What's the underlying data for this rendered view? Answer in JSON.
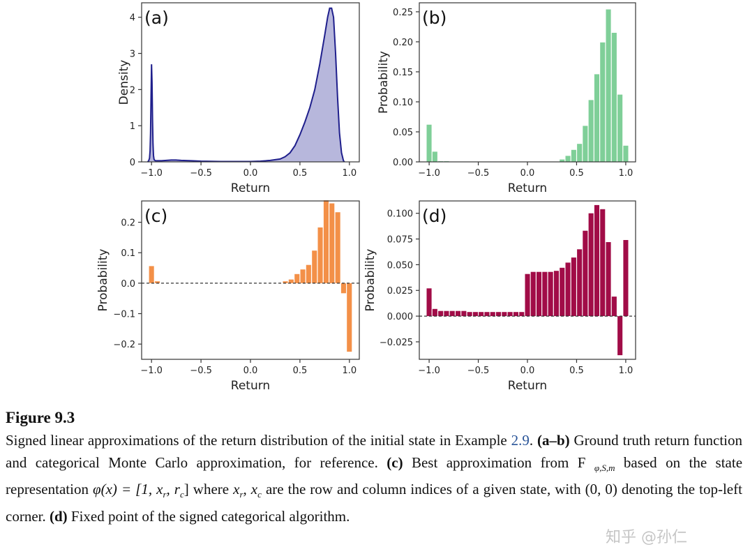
{
  "figure": {
    "number_label": "Figure 9.3",
    "caption_parts": {
      "p1": "Signed linear approximations of the return distribution of the initial state in Example ",
      "ref": "2.9",
      "p2": ". ",
      "ab": "(a–b)",
      "p3": " Ground truth return function and categorical Monte Carlo approximation, for reference. ",
      "c": "(c)",
      "p4": " Best approximation from F ",
      "sub": "φ,S,m",
      "p5": " based on the state representation ",
      "phi": "φ(x) = [1, x",
      "p6": " where ",
      "xs": "x",
      "p7": " are the row and column indices of a given state, with (0, 0) denoting the top-left corner. ",
      "d": "(d)",
      "p8": " Fixed point of the signed categorical algorithm."
    },
    "watermark": "知乎 @孙仁"
  },
  "chart_data": [
    {
      "type": "area",
      "panel_label": "(a)",
      "xlabel": "Return",
      "ylabel": "Density",
      "xlim": [
        -1.1,
        1.1
      ],
      "ylim": [
        0,
        4.4
      ],
      "xticks": [
        "−1.0",
        "−0.5",
        "0.0",
        "0.5",
        "1.0"
      ],
      "yticks": [
        "0",
        "1",
        "2",
        "3",
        "4"
      ],
      "color": "#1f1f8c",
      "fill": "#b7b7dc",
      "x": [
        -1.04,
        -1.03,
        -1.02,
        -1.015,
        -1.01,
        -1.005,
        -1.0,
        -0.995,
        -0.99,
        -0.985,
        -0.98,
        -0.975,
        -0.97,
        -0.96,
        -0.95,
        -0.9,
        -0.85,
        -0.8,
        -0.75,
        -0.7,
        -0.6,
        -0.5,
        -0.4,
        -0.3,
        -0.2,
        -0.1,
        0.0,
        0.1,
        0.2,
        0.3,
        0.35,
        0.4,
        0.45,
        0.5,
        0.55,
        0.6,
        0.65,
        0.7,
        0.75,
        0.78,
        0.8,
        0.82,
        0.84,
        0.86,
        0.88,
        0.9,
        0.92,
        0.94,
        0.95
      ],
      "y": [
        0,
        0.02,
        0.1,
        0.3,
        0.8,
        1.8,
        2.7,
        2.2,
        1.2,
        0.5,
        0.18,
        0.08,
        0.05,
        0.03,
        0.03,
        0.03,
        0.04,
        0.05,
        0.05,
        0.04,
        0.03,
        0.02,
        0.015,
        0.01,
        0.01,
        0.01,
        0.01,
        0.02,
        0.04,
        0.08,
        0.14,
        0.25,
        0.45,
        0.75,
        1.1,
        1.5,
        2.0,
        2.7,
        3.5,
        4.0,
        4.25,
        4.25,
        4.0,
        3.0,
        1.8,
        0.8,
        0.25,
        0.03,
        0.0
      ]
    },
    {
      "type": "bar",
      "panel_label": "(b)",
      "xlabel": "Return",
      "ylabel": "Probability",
      "xlim": [
        -1.1,
        1.1
      ],
      "ylim": [
        0,
        0.265
      ],
      "xticks": [
        "−1.0",
        "−0.5",
        "0.0",
        "0.5",
        "1.0"
      ],
      "yticks": [
        "0.00",
        "0.05",
        "0.10",
        "0.15",
        "0.20",
        "0.25"
      ],
      "color": "#7fcf98",
      "bin_width": 0.0588,
      "x": [
        -1.0,
        -0.9412,
        -0.8824,
        -0.8235,
        -0.7647,
        -0.7059,
        -0.6471,
        -0.5882,
        -0.5294,
        -0.4706,
        -0.4118,
        -0.3529,
        -0.2941,
        -0.2353,
        -0.1765,
        -0.1176,
        -0.0588,
        0.0,
        0.0588,
        0.1176,
        0.1765,
        0.2353,
        0.2941,
        0.3529,
        0.4118,
        0.4706,
        0.5294,
        0.5882,
        0.6471,
        0.7059,
        0.7647,
        0.8235,
        0.8824,
        0.9412,
        1.0
      ],
      "values": [
        0.062,
        0.017,
        0.001,
        0.001,
        0.0,
        0.0,
        0.0,
        0.0,
        0.0,
        0.0,
        0.0,
        0.0,
        0.0,
        0.0,
        0.0,
        0.0,
        0.0,
        0.0,
        0.0,
        0.0,
        0.0,
        0.0,
        0.0,
        0.004,
        0.01,
        0.02,
        0.03,
        0.06,
        0.103,
        0.146,
        0.199,
        0.254,
        0.215,
        0.112,
        0.027
      ]
    },
    {
      "type": "bar",
      "panel_label": "(c)",
      "xlabel": "Return",
      "ylabel": "Probability",
      "xlim": [
        -1.1,
        1.1
      ],
      "ylim": [
        -0.25,
        0.27
      ],
      "xticks": [
        "−1.0",
        "−0.5",
        "0.0",
        "0.5",
        "1.0"
      ],
      "yticks": [
        "−0.2",
        "−0.1",
        "0.0",
        "0.1",
        "0.2"
      ],
      "color": "#f39048",
      "bin_width": 0.0588,
      "x": [
        -1.0,
        -0.9412,
        0.3529,
        0.4118,
        0.4706,
        0.5294,
        0.5882,
        0.6471,
        0.7059,
        0.7647,
        0.8235,
        0.8824,
        0.9412,
        1.0
      ],
      "values": [
        0.056,
        0.006,
        0.006,
        0.012,
        0.03,
        0.045,
        0.06,
        0.107,
        0.183,
        0.272,
        0.262,
        0.233,
        -0.033,
        -0.225
      ]
    },
    {
      "type": "bar",
      "panel_label": "(d)",
      "xlabel": "Return",
      "ylabel": "Probability",
      "xlim": [
        -1.1,
        1.1
      ],
      "ylim": [
        -0.042,
        0.112
      ],
      "xticks": [
        "−1.0",
        "−0.5",
        "0.0",
        "0.5",
        "1.0"
      ],
      "yticks": [
        "−0.025",
        "0.000",
        "0.025",
        "0.050",
        "0.075",
        "0.100"
      ],
      "color": "#a10c47",
      "bin_width": 0.0588,
      "x": [
        -1.0,
        -0.9412,
        -0.8824,
        -0.8235,
        -0.7647,
        -0.7059,
        -0.6471,
        -0.5882,
        -0.5294,
        -0.4706,
        -0.4118,
        -0.3529,
        -0.2941,
        -0.2353,
        -0.1765,
        -0.1176,
        -0.0588,
        0.0,
        0.0588,
        0.1176,
        0.1765,
        0.2353,
        0.2941,
        0.3529,
        0.4118,
        0.4706,
        0.5294,
        0.5882,
        0.6471,
        0.7059,
        0.7647,
        0.8235,
        0.8824,
        0.9412,
        1.0
      ],
      "values": [
        0.027,
        0.007,
        0.005,
        0.005,
        0.005,
        0.005,
        0.005,
        0.004,
        0.004,
        0.004,
        0.004,
        0.004,
        0.004,
        0.004,
        0.004,
        0.004,
        0.004,
        0.041,
        0.043,
        0.043,
        0.043,
        0.043,
        0.044,
        0.047,
        0.052,
        0.057,
        0.065,
        0.083,
        0.1,
        0.108,
        0.104,
        0.072,
        0.019,
        -0.038,
        0.074
      ]
    }
  ]
}
